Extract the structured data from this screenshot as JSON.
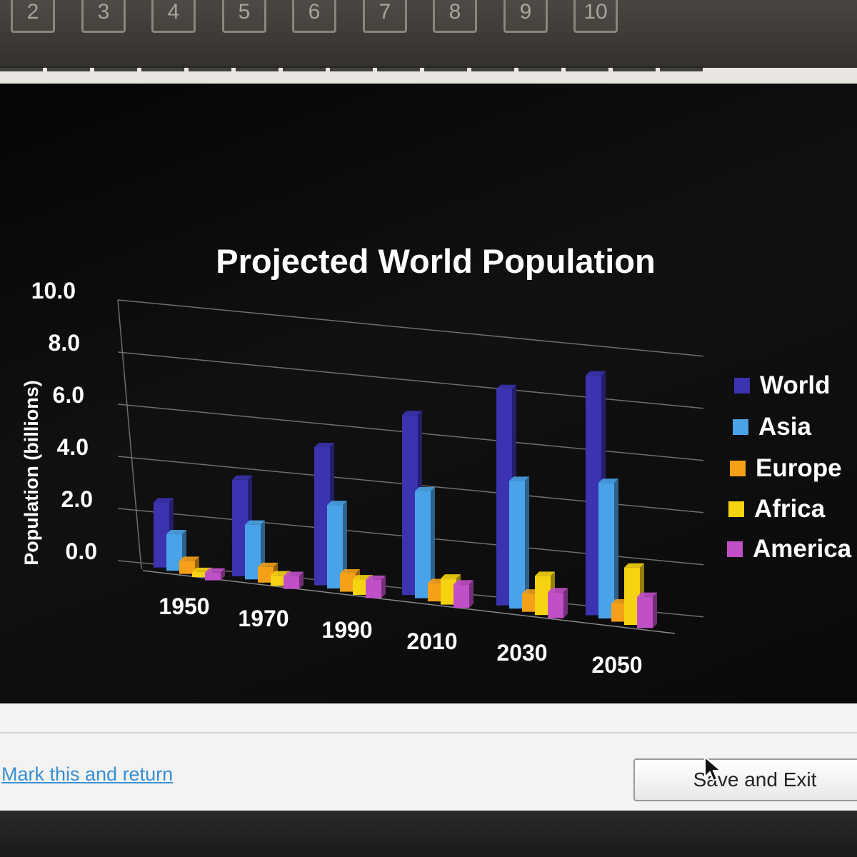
{
  "question_nav": {
    "buttons": [
      "2",
      "3",
      "4",
      "5",
      "6",
      "7",
      "8",
      "9",
      "10"
    ]
  },
  "footer": {
    "mark_link": "Mark this and return",
    "save_exit": "Save and Exit"
  },
  "chart_data": {
    "type": "bar",
    "title": "Projected World Population",
    "xlabel": "",
    "ylabel": "Population (billions)",
    "ylim": [
      0,
      10
    ],
    "yticks": [
      "0.0",
      "2.0",
      "4.0",
      "6.0",
      "8.0",
      "10.0"
    ],
    "categories": [
      "1950",
      "1970",
      "1990",
      "2010",
      "2030",
      "2050"
    ],
    "series": [
      {
        "name": "World",
        "color": "#3b33b0",
        "values": [
          2.5,
          3.7,
          5.3,
          6.9,
          8.3,
          9.2
        ]
      },
      {
        "name": "Asia",
        "color": "#4aa3e8",
        "values": [
          1.4,
          2.1,
          3.2,
          4.1,
          4.9,
          5.2
        ]
      },
      {
        "name": "Europe",
        "color": "#f5a018",
        "values": [
          0.5,
          0.6,
          0.7,
          0.7,
          0.7,
          0.7
        ]
      },
      {
        "name": "Africa",
        "color": "#f6d311",
        "values": [
          0.2,
          0.4,
          0.6,
          1.0,
          1.5,
          2.2
        ]
      },
      {
        "name": "America",
        "color": "#c04fc8",
        "values": [
          0.3,
          0.5,
          0.7,
          0.9,
          1.0,
          1.2
        ]
      }
    ],
    "legend_position": "right",
    "grid": true
  }
}
